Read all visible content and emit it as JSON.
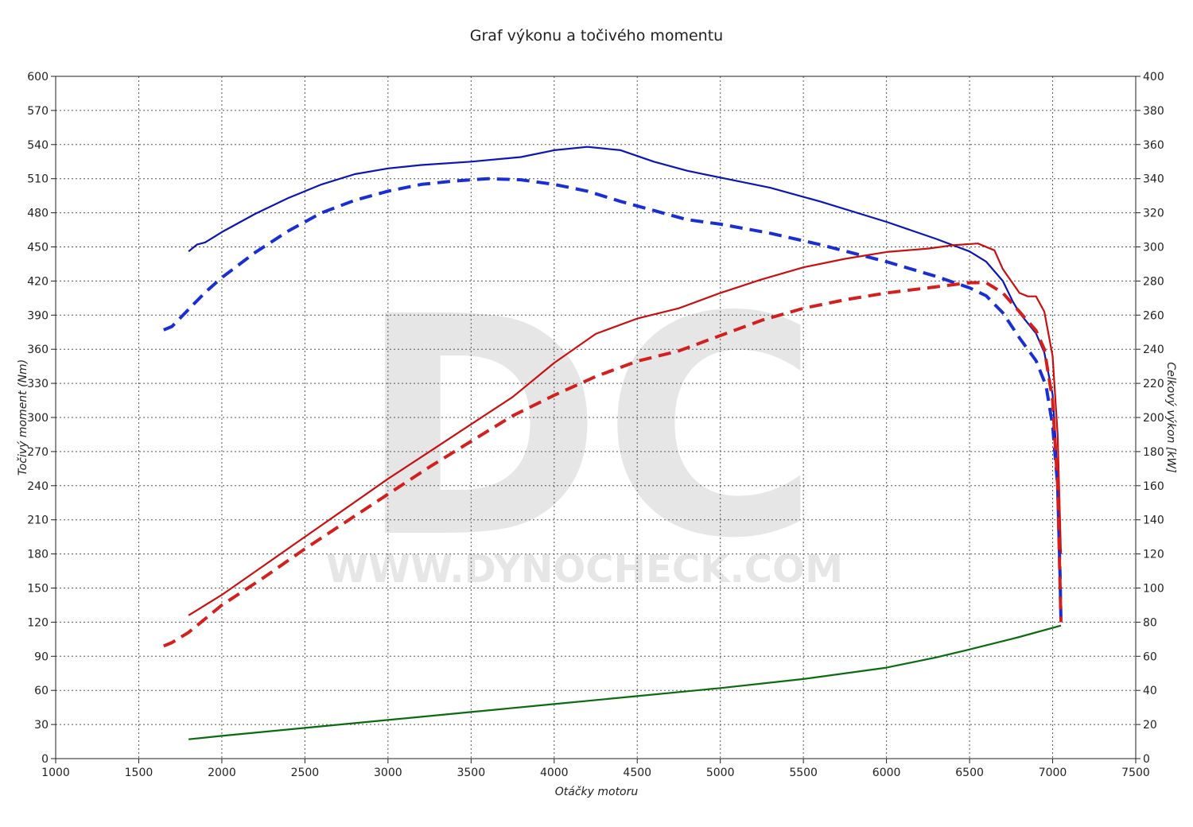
{
  "chart_data": {
    "type": "line",
    "title": "Graf výkonu a točivého momentu",
    "xlabel": "Otáčky motoru",
    "ylabel_left": "Točivý moment (Nm)",
    "ylabel_right": "Celkový výkon [kW]",
    "xlim": [
      1000,
      7500
    ],
    "ylim_left": [
      0,
      600
    ],
    "ylim_right": [
      0,
      400
    ],
    "x_ticks": [
      "1000",
      "1500",
      "2000",
      "2500",
      "3000",
      "3500",
      "4000",
      "4500",
      "5000",
      "5500",
      "6000",
      "6500",
      "7000",
      "7500"
    ],
    "y_left_ticks": [
      "0",
      "30",
      "60",
      "90",
      "120",
      "150",
      "180",
      "210",
      "240",
      "270",
      "300",
      "330",
      "360",
      "390",
      "420",
      "450",
      "480",
      "510",
      "540",
      "570",
      "600"
    ],
    "y_right_ticks": [
      "0",
      "20",
      "40",
      "60",
      "80",
      "100",
      "120",
      "140",
      "160",
      "180",
      "200",
      "220",
      "240",
      "260",
      "280",
      "300",
      "320",
      "340",
      "360",
      "380",
      "400"
    ],
    "grid": true,
    "watermark": {
      "logo": "DC",
      "url": "WWW.DYNOCHECK.COM"
    },
    "series": [
      {
        "axis": "left",
        "style": "solid",
        "color": "#0b16b5",
        "points": [
          [
            1800,
            446
          ],
          [
            1850,
            452
          ],
          [
            1900,
            454
          ],
          [
            2000,
            463
          ],
          [
            2200,
            479
          ],
          [
            2400,
            493
          ],
          [
            2600,
            505
          ],
          [
            2800,
            514
          ],
          [
            3000,
            519
          ],
          [
            3200,
            522
          ],
          [
            3500,
            525
          ],
          [
            3800,
            529
          ],
          [
            4000,
            535
          ],
          [
            4200,
            538
          ],
          [
            4400,
            535
          ],
          [
            4600,
            525
          ],
          [
            4800,
            517
          ],
          [
            5000,
            511
          ],
          [
            5300,
            502
          ],
          [
            5600,
            490
          ],
          [
            6000,
            472
          ],
          [
            6300,
            457
          ],
          [
            6500,
            446
          ],
          [
            6600,
            437
          ],
          [
            6700,
            420
          ],
          [
            6760,
            402
          ],
          [
            6800,
            392
          ],
          [
            6850,
            383
          ],
          [
            6900,
            374
          ],
          [
            6950,
            357
          ],
          [
            7000,
            320
          ],
          [
            7020,
            275
          ],
          [
            7040,
            185
          ],
          [
            7050,
            130
          ]
        ]
      },
      {
        "axis": "left",
        "style": "dashed",
        "color": "#1a2ed6",
        "points": [
          [
            1650,
            377
          ],
          [
            1700,
            380
          ],
          [
            1800,
            395
          ],
          [
            1900,
            410
          ],
          [
            2000,
            423
          ],
          [
            2200,
            445
          ],
          [
            2400,
            464
          ],
          [
            2600,
            480
          ],
          [
            2800,
            491
          ],
          [
            3000,
            499
          ],
          [
            3200,
            505
          ],
          [
            3400,
            508
          ],
          [
            3600,
            510
          ],
          [
            3800,
            509
          ],
          [
            4000,
            505
          ],
          [
            4200,
            499
          ],
          [
            4400,
            490
          ],
          [
            4600,
            482
          ],
          [
            4800,
            474
          ],
          [
            5000,
            470
          ],
          [
            5300,
            462
          ],
          [
            5600,
            452
          ],
          [
            6000,
            437
          ],
          [
            6300,
            424
          ],
          [
            6500,
            414
          ],
          [
            6600,
            407
          ],
          [
            6700,
            392
          ],
          [
            6800,
            370
          ],
          [
            6900,
            350
          ],
          [
            6960,
            328
          ],
          [
            7000,
            293
          ],
          [
            7030,
            240
          ],
          [
            7045,
            160
          ],
          [
            7050,
            120
          ]
        ]
      },
      {
        "axis": "right",
        "style": "solid",
        "color": "#c81010",
        "points": [
          [
            1800,
            84
          ],
          [
            1850,
            87
          ],
          [
            2000,
            96
          ],
          [
            2250,
            113
          ],
          [
            2500,
            130
          ],
          [
            2750,
            147
          ],
          [
            3000,
            164
          ],
          [
            3250,
            180
          ],
          [
            3500,
            196
          ],
          [
            3750,
            212
          ],
          [
            4000,
            232
          ],
          [
            4250,
            249
          ],
          [
            4500,
            258
          ],
          [
            4750,
            264
          ],
          [
            5000,
            273
          ],
          [
            5250,
            281
          ],
          [
            5500,
            288
          ],
          [
            5750,
            293
          ],
          [
            6000,
            297
          ],
          [
            6250,
            299
          ],
          [
            6400,
            301
          ],
          [
            6550,
            302
          ],
          [
            6650,
            298
          ],
          [
            6700,
            287
          ],
          [
            6800,
            273
          ],
          [
            6850,
            271
          ],
          [
            6900,
            271
          ],
          [
            6950,
            262
          ],
          [
            7000,
            236
          ],
          [
            7030,
            190
          ],
          [
            7050,
            120
          ]
        ]
      },
      {
        "axis": "right",
        "style": "dashed",
        "color": "#d41f1f",
        "points": [
          [
            1650,
            66
          ],
          [
            1700,
            68
          ],
          [
            1800,
            74
          ],
          [
            2000,
            90
          ],
          [
            2250,
            106
          ],
          [
            2500,
            123
          ],
          [
            2750,
            139
          ],
          [
            3000,
            155
          ],
          [
            3250,
            171
          ],
          [
            3500,
            186
          ],
          [
            3750,
            201
          ],
          [
            4000,
            213
          ],
          [
            4250,
            224
          ],
          [
            4500,
            233
          ],
          [
            4750,
            239
          ],
          [
            5000,
            248
          ],
          [
            5250,
            257
          ],
          [
            5500,
            264
          ],
          [
            5750,
            269
          ],
          [
            6000,
            273
          ],
          [
            6250,
            276
          ],
          [
            6500,
            279
          ],
          [
            6600,
            279
          ],
          [
            6700,
            273
          ],
          [
            6800,
            262
          ],
          [
            6900,
            251
          ],
          [
            6950,
            240
          ],
          [
            7000,
            210
          ],
          [
            7030,
            160
          ],
          [
            7050,
            80
          ]
        ]
      },
      {
        "axis": "left",
        "style": "solid",
        "color": "#0a6b10",
        "points": [
          [
            1800,
            17
          ],
          [
            2000,
            20
          ],
          [
            2500,
            27
          ],
          [
            3000,
            34
          ],
          [
            3500,
            41
          ],
          [
            4000,
            48
          ],
          [
            4500,
            55
          ],
          [
            5000,
            62
          ],
          [
            5500,
            70
          ],
          [
            6000,
            80
          ],
          [
            6300,
            89
          ],
          [
            6500,
            96
          ],
          [
            6800,
            107
          ],
          [
            7050,
            117
          ]
        ]
      }
    ]
  }
}
